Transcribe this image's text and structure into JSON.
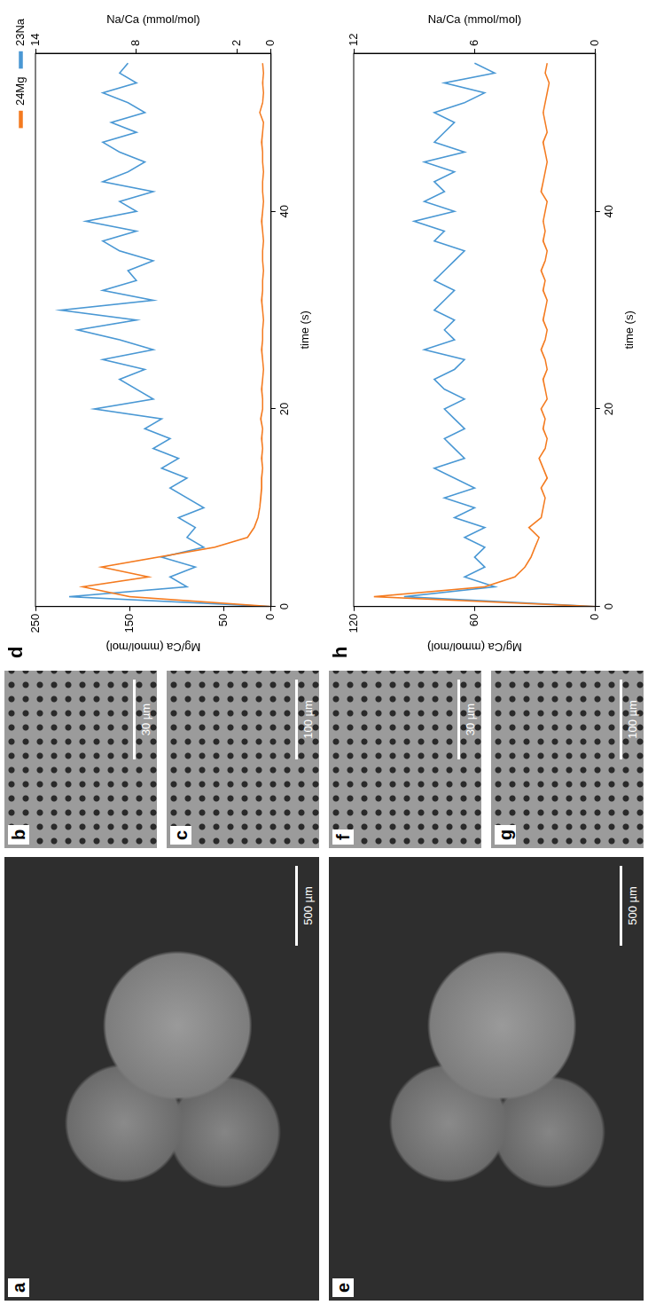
{
  "images": [
    {
      "panel": "a",
      "scale_bar": "500 µm"
    },
    {
      "panel": "b",
      "scale_bar": "30 µm"
    },
    {
      "panel": "c",
      "scale_bar": "100 µm"
    },
    {
      "panel": "e",
      "scale_bar": "500 µm"
    },
    {
      "panel": "f",
      "scale_bar": "30 µm"
    },
    {
      "panel": "g",
      "scale_bar": "100 µm"
    }
  ],
  "chart_data": [
    {
      "panel": "d",
      "type": "line",
      "x_label": "time (s)",
      "y_label": "Mg/Ca (mmol/mol)",
      "y2_label": "Na/Ca (mmol/mol)",
      "x": [
        0,
        1,
        2,
        3,
        4,
        5,
        6,
        7,
        8,
        9,
        10,
        11,
        12,
        13,
        14,
        15,
        16,
        17,
        18,
        19,
        20,
        21,
        22,
        23,
        24,
        25,
        26,
        27,
        28,
        29,
        30,
        31,
        32,
        33,
        34,
        35,
        36,
        37,
        38,
        39,
        40,
        41,
        42,
        43,
        44,
        45,
        46,
        47,
        48,
        49,
        50,
        51,
        52,
        53,
        54,
        55
      ],
      "series": [
        {
          "name": "24Mg",
          "color": "#f47b20",
          "values": [
            0,
            150,
            200,
            130,
            180,
            120,
            60,
            25,
            18,
            14,
            12,
            11,
            10,
            10,
            9,
            10,
            9,
            10,
            9,
            11,
            9,
            9,
            10,
            9,
            8,
            9,
            10,
            9,
            9,
            8,
            9,
            10,
            9,
            9,
            8,
            9,
            9,
            8,
            9,
            10,
            9,
            8,
            9,
            9,
            8,
            9,
            9,
            10,
            9,
            8,
            12,
            9,
            8,
            9,
            8,
            9
          ]
        },
        {
          "name": "23Na",
          "color": "#4a98d4",
          "axis": "y2",
          "values": [
            0,
            12,
            5,
            6,
            4.5,
            6.5,
            4,
            5,
            4.5,
            5.5,
            4,
            5,
            6,
            5,
            6.5,
            5.5,
            7,
            6,
            7.5,
            6.5,
            10.5,
            7,
            8,
            9,
            7.5,
            10,
            7,
            9,
            11.5,
            8,
            12.5,
            7,
            10,
            8,
            8.5,
            7,
            9,
            10,
            8,
            11,
            8,
            9,
            7,
            10,
            8.5,
            7.5,
            9,
            10,
            8,
            9.5,
            7.5,
            8.5,
            10,
            8,
            9,
            8.5
          ]
        }
      ],
      "xlim": [
        0,
        56
      ],
      "xticks": [
        0,
        20,
        40
      ],
      "ylim": [
        0,
        250
      ],
      "yticks": [
        0,
        50,
        150,
        250
      ],
      "y2lim": [
        0,
        14
      ],
      "y2ticks": [
        0,
        2,
        8,
        14
      ],
      "grid": false,
      "legend": "upper right"
    },
    {
      "panel": "h",
      "type": "line",
      "x_label": "time (s)",
      "y_label": "Mg/Ca (mmol/mol)",
      "y2_label": "Na/Ca (mmol/mol)",
      "x": [
        0,
        1,
        2,
        3,
        4,
        5,
        6,
        7,
        8,
        9,
        10,
        11,
        12,
        13,
        14,
        15,
        16,
        17,
        18,
        19,
        20,
        21,
        22,
        23,
        24,
        25,
        26,
        27,
        28,
        29,
        30,
        31,
        32,
        33,
        34,
        35,
        36,
        37,
        38,
        39,
        40,
        41,
        42,
        43,
        44,
        45,
        46,
        47,
        48,
        49,
        50,
        51,
        52,
        53,
        54,
        55
      ],
      "series": [
        {
          "name": "24Mg",
          "color": "#f47b20",
          "values": [
            0,
            110,
            55,
            40,
            35,
            32,
            30,
            28,
            33,
            27,
            26,
            25,
            27,
            24,
            26,
            28,
            25,
            24,
            26,
            25,
            27,
            24,
            25,
            26,
            24,
            25,
            27,
            25,
            24,
            26,
            25,
            24,
            26,
            25,
            27,
            25,
            24,
            26,
            25,
            26,
            25,
            24,
            27,
            26,
            25,
            24,
            25,
            26,
            24,
            25,
            26,
            25,
            24,
            23,
            25,
            24
          ]
        },
        {
          "name": "23Na",
          "color": "#4a98d4",
          "axis": "y2",
          "values": [
            0,
            9.5,
            5,
            6.5,
            5.5,
            6,
            5.5,
            6.5,
            5.5,
            7,
            6,
            7.5,
            6,
            7,
            8,
            6.5,
            7,
            7.5,
            6.5,
            7,
            7.5,
            6.5,
            7.5,
            8,
            7,
            6.5,
            8.5,
            7,
            7.5,
            7,
            8,
            7.5,
            7,
            8,
            7.5,
            7,
            6.5,
            8,
            7.5,
            9,
            7,
            8.5,
            7.5,
            8,
            7,
            8.5,
            6.5,
            8,
            7.5,
            7,
            8,
            6.5,
            5.5,
            7.5,
            5,
            6
          ]
        }
      ],
      "xlim": [
        0,
        56
      ],
      "xticks": [
        0,
        20,
        40
      ],
      "ylim": [
        0,
        120
      ],
      "yticks": [
        0,
        60,
        120
      ],
      "y2lim": [
        0,
        12
      ],
      "y2ticks": [
        0,
        6,
        12
      ],
      "grid": false
    }
  ]
}
